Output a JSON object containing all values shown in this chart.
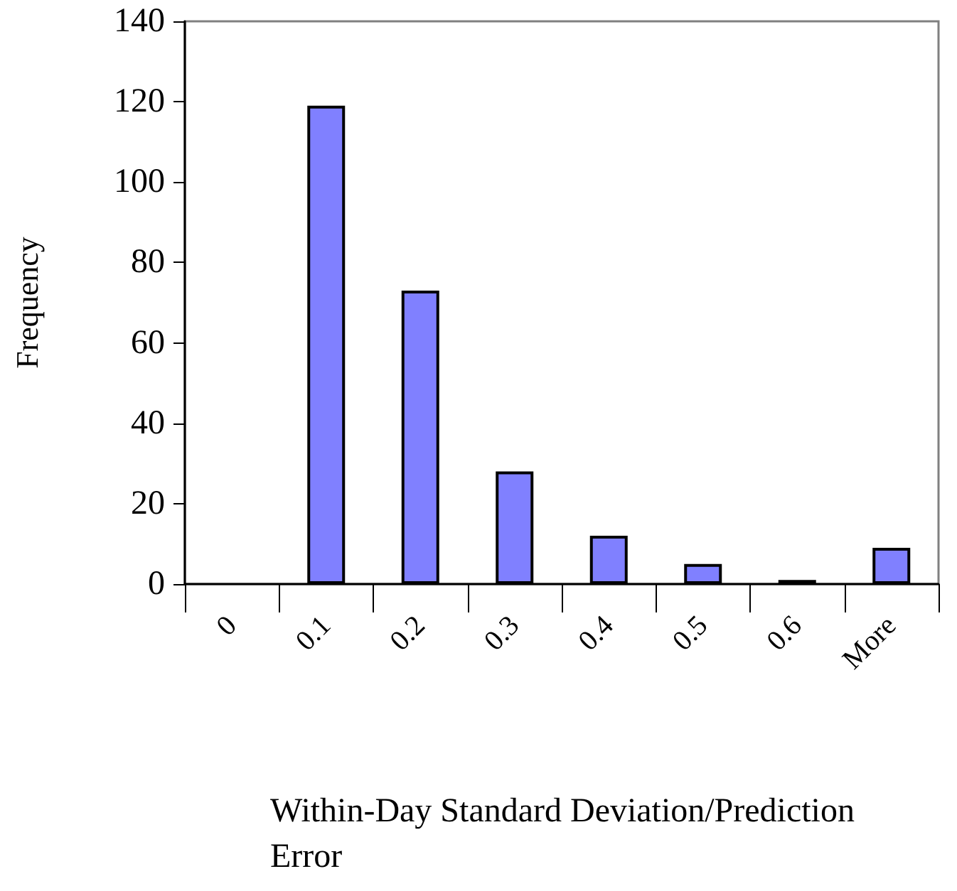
{
  "chart_data": {
    "type": "bar",
    "xlabel": "Within-Day Standard Deviation/Prediction Error",
    "ylabel": "Frequency",
    "categories": [
      "0",
      "0.1",
      "0.2",
      "0.3",
      "0.4",
      "0.5",
      "0.6",
      "More"
    ],
    "values": [
      0,
      119,
      73,
      28,
      12,
      5,
      1,
      9
    ],
    "color": "#8080ff",
    "ylim": [
      0,
      140
    ],
    "yticks": [
      0,
      20,
      40,
      60,
      80,
      100,
      120,
      140
    ],
    "grid": false
  }
}
